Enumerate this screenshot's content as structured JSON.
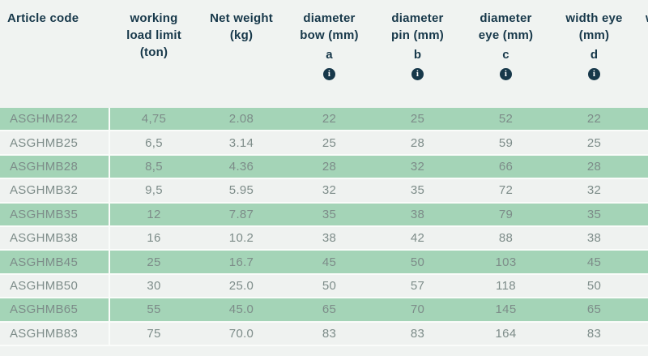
{
  "table": {
    "info_icon_glyph": "i",
    "colors": {
      "row_green": "#a4d4b7",
      "row_light": "#eff2f0",
      "header_text": "#17384a",
      "row_text": "#7d8c89",
      "background": "#f0f3f1",
      "divider": "#fafcfa"
    },
    "columns": [
      {
        "key": "article-code",
        "label_lines": [
          "Article code"
        ],
        "letter": null,
        "info": false,
        "align": "left"
      },
      {
        "key": "working-load-limit",
        "label_lines": [
          "working",
          "load limit",
          "(ton)"
        ],
        "letter": null,
        "info": false,
        "align": "center"
      },
      {
        "key": "net-weight",
        "label_lines": [
          "Net weight",
          "(kg)"
        ],
        "letter": null,
        "info": false,
        "align": "center"
      },
      {
        "key": "diameter-bow",
        "label_lines": [
          "diameter",
          "bow (mm)"
        ],
        "letter": "a",
        "info": true,
        "align": "center"
      },
      {
        "key": "diameter-pin",
        "label_lines": [
          "diameter",
          "pin (mm)"
        ],
        "letter": "b",
        "info": true,
        "align": "center"
      },
      {
        "key": "diameter-eye",
        "label_lines": [
          "diameter",
          "eye (mm)"
        ],
        "letter": "c",
        "info": true,
        "align": "center"
      },
      {
        "key": "width-eye",
        "label_lines": [
          "width eye",
          "(mm)"
        ],
        "letter": "d",
        "info": true,
        "align": "center"
      },
      {
        "key": "truncated-next-column",
        "label_lines": [
          "w"
        ],
        "letter": null,
        "info": false,
        "align": "center",
        "truncated": true
      }
    ],
    "rows": [
      [
        "ASGHMB22",
        "4,75",
        "2.08",
        "22",
        "25",
        "52",
        "22"
      ],
      [
        "ASGHMB25",
        "6,5",
        "3.14",
        "25",
        "28",
        "59",
        "25"
      ],
      [
        "ASGHMB28",
        "8,5",
        "4.36",
        "28",
        "32",
        "66",
        "28"
      ],
      [
        "ASGHMB32",
        "9,5",
        "5.95",
        "32",
        "35",
        "72",
        "32"
      ],
      [
        "ASGHMB35",
        "12",
        "7.87",
        "35",
        "38",
        "79",
        "35"
      ],
      [
        "ASGHMB38",
        "16",
        "10.2",
        "38",
        "42",
        "88",
        "38"
      ],
      [
        "ASGHMB45",
        "25",
        "16.7",
        "45",
        "50",
        "103",
        "45"
      ],
      [
        "ASGHMB50",
        "30",
        "25.0",
        "50",
        "57",
        "118",
        "50"
      ],
      [
        "ASGHMB65",
        "55",
        "45.0",
        "65",
        "70",
        "145",
        "65"
      ],
      [
        "ASGHMB83",
        "75",
        "70.0",
        "83",
        "83",
        "164",
        "83"
      ]
    ]
  }
}
